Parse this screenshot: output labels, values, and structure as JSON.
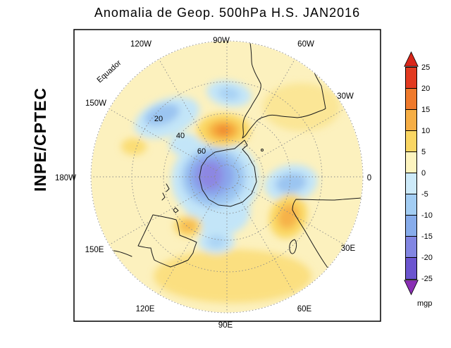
{
  "title": "Anomalia de Geop. 500hPa H.S. JAN2016",
  "branding": "INPE/CPTEC",
  "map": {
    "equator_label": "Equador",
    "lon_labels": [
      "120W",
      "90W",
      "60W",
      "150W",
      "30W",
      "180W",
      "0",
      "150E",
      "30E",
      "120E",
      "60E",
      "90E"
    ],
    "lat_labels": [
      "20",
      "40",
      "60"
    ]
  },
  "colorbar": {
    "ticks": [
      "25",
      "20",
      "15",
      "10",
      "5",
      "0",
      "-5",
      "-10",
      "-15",
      "-20",
      "-25"
    ],
    "segment_colors": [
      "#e23a20",
      "#ef7a2c",
      "#f6ae45",
      "#fad663",
      "#fdf4bf",
      "#cdeaf9",
      "#a3cdf3",
      "#87aceb",
      "#8286e2",
      "#6b55cf"
    ],
    "arrow_top_color": "#d8261a",
    "arrow_bottom_color": "#8a2fb4",
    "unit": "mgp"
  },
  "chart_data": {
    "type": "heatmap",
    "title": "Anomalia de Geop. 500hPa H.S. JAN2016",
    "variable": "geopotential height anomaly",
    "level": "500 hPa",
    "hemisphere": "Southern Hemisphere (H.S.)",
    "month": "JAN2016",
    "unit": "mgp",
    "source": "INPE/CPTEC",
    "projection": "polar stereographic centered on South Pole, equator at outer circle",
    "graticule": {
      "lat_circle_labels": [
        20,
        40,
        60
      ],
      "lon_spacing_deg": 30,
      "equator_label": "Equador"
    },
    "scale_levels": [
      -25,
      -20,
      -15,
      -10,
      -5,
      0,
      5,
      10,
      15,
      20,
      25
    ],
    "scale_colors": [
      "#8a2fb4",
      "#6b55cf",
      "#8286e2",
      "#87aceb",
      "#a3cdf3",
      "#cdeaf9",
      "#fdf4bf",
      "#fad663",
      "#f6ae45",
      "#ef7a2c",
      "#e23a20",
      "#d8261a"
    ],
    "anomaly_centers": [
      {
        "location": "polar cap / Antarctic Peninsula sector (70S-90S)",
        "sign": "negative",
        "peak_value_mgp": -20
      },
      {
        "location": "southeast Pacific mid-latitudes (about 135W, 26S)",
        "sign": "negative",
        "peak_value_mgp": -10
      },
      {
        "location": "southeast Pacific off Chile (about 88W, 27S)",
        "sign": "negative",
        "peak_value_mgp": -8
      },
      {
        "location": "South Pacific (about 92W, 52S)",
        "sign": "positive",
        "peak_value_mgp": 15
      },
      {
        "location": "South Atlantic near Greenwich meridian (about 5E, 40S)",
        "sign": "negative",
        "peak_value_mgp": -10
      },
      {
        "location": "southwest Indian Ocean (about 33E, 34S)",
        "sign": "positive",
        "peak_value_mgp": 12
      },
      {
        "location": "south of Australia (about 100E, 39S)",
        "sign": "negative",
        "peak_value_mgp": -7
      },
      {
        "location": "Great Australian Bight (about 128E, 40S)",
        "sign": "positive",
        "peak_value_mgp": 8
      },
      {
        "location": "hemispheric background",
        "sign": "positive",
        "peak_value_mgp": 3
      }
    ]
  }
}
